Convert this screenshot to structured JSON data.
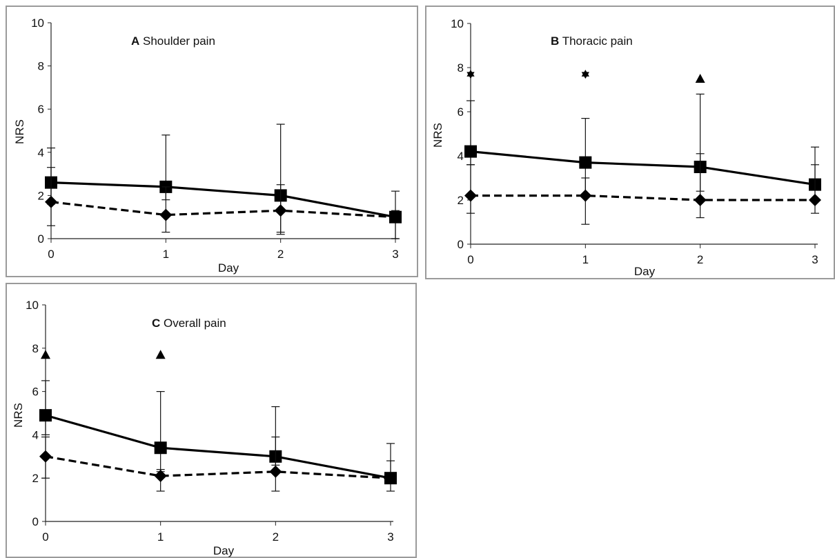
{
  "chart_data": [
    {
      "type": "line",
      "panel_letter": "A",
      "title": "Shoulder pain",
      "xlabel": "Day",
      "ylabel": "NRS",
      "x": [
        0,
        1,
        2,
        3
      ],
      "xticks": [
        "0",
        "1",
        "2",
        "3"
      ],
      "yticks": [
        "0",
        "2",
        "4",
        "6",
        "8",
        "10"
      ],
      "ylim": [
        0,
        10
      ],
      "grid": false,
      "legend": "none",
      "series": [
        {
          "style": "solid",
          "marker": "square",
          "values": [
            2.6,
            2.4,
            2.0,
            1.0
          ],
          "error_upper": [
            4.2,
            4.8,
            5.3,
            1.3
          ],
          "error_lower": [
            1.6,
            1.8,
            0.3,
            0.0
          ]
        },
        {
          "style": "dashed",
          "marker": "diamond",
          "values": [
            1.7,
            1.1,
            1.3,
            1.0
          ],
          "error_upper": [
            3.3,
            2.4,
            2.5,
            2.2
          ],
          "error_lower": [
            0.6,
            0.3,
            0.2,
            0.0
          ]
        }
      ],
      "markers": []
    },
    {
      "type": "line",
      "panel_letter": "B",
      "title": "Thoracic pain",
      "xlabel": "Day",
      "ylabel": "NRS",
      "x": [
        0,
        1,
        2,
        3
      ],
      "xticks": [
        "0",
        "1",
        "2",
        "3"
      ],
      "yticks": [
        "0",
        "2",
        "4",
        "6",
        "8",
        "10"
      ],
      "ylim": [
        0,
        10
      ],
      "grid": false,
      "legend": "none",
      "series": [
        {
          "style": "solid",
          "marker": "square",
          "values": [
            4.2,
            3.7,
            3.5,
            2.7
          ],
          "error_upper": [
            6.5,
            5.7,
            6.8,
            4.4
          ],
          "error_lower": [
            3.6,
            2.2,
            2.4,
            2.0
          ]
        },
        {
          "style": "dashed",
          "marker": "diamond",
          "values": [
            2.2,
            2.2,
            2.0,
            2.0
          ],
          "error_upper": [
            3.6,
            3.0,
            4.1,
            3.6
          ],
          "error_lower": [
            1.4,
            0.9,
            1.2,
            1.4
          ]
        }
      ],
      "markers": [
        {
          "x": 0,
          "y": 7.7,
          "symbol": "star"
        },
        {
          "x": 1,
          "y": 7.7,
          "symbol": "star"
        },
        {
          "x": 2,
          "y": 7.5,
          "symbol": "triangle"
        }
      ]
    },
    {
      "type": "line",
      "panel_letter": "C",
      "title": "Overall pain",
      "xlabel": "Day",
      "ylabel": "NRS",
      "x": [
        0,
        1,
        2,
        3
      ],
      "xticks": [
        "0",
        "1",
        "2",
        "3"
      ],
      "yticks": [
        "0",
        "2",
        "4",
        "6",
        "8",
        "10"
      ],
      "ylim": [
        0,
        10
      ],
      "grid": false,
      "legend": "none",
      "series": [
        {
          "style": "solid",
          "marker": "square",
          "values": [
            4.9,
            3.4,
            3.0,
            2.0
          ],
          "error_upper": [
            6.5,
            6.0,
            5.3,
            3.6
          ],
          "error_lower": [
            4.0,
            2.3,
            2.6,
            2.0
          ]
        },
        {
          "style": "dashed",
          "marker": "diamond",
          "values": [
            3.0,
            2.1,
            2.3,
            2.0
          ],
          "error_upper": [
            3.9,
            2.4,
            3.9,
            2.8
          ],
          "error_lower": [
            2.0,
            1.4,
            1.4,
            1.4
          ]
        }
      ],
      "markers": [
        {
          "x": 0,
          "y": 7.7,
          "symbol": "triangle"
        },
        {
          "x": 1,
          "y": 7.7,
          "symbol": "triangle"
        }
      ]
    }
  ]
}
